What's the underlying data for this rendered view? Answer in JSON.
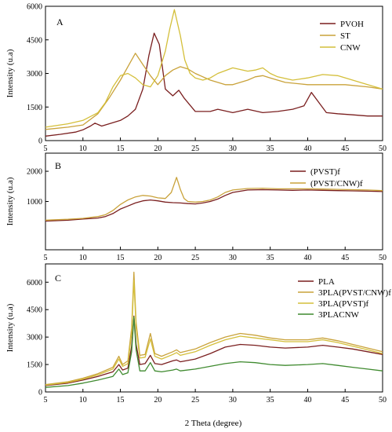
{
  "xlabel": "2 Theta (degree)",
  "colors": {
    "PVOH": "#7a1f1f",
    "ST": "#c9a23a",
    "CNW": "#d4bf3a",
    "PVST": "#7a1f1f",
    "PVSTCNW": "#c9a23a",
    "PLA": "#7a1f1f",
    "PLA_PVSTCNW": "#c9a23a",
    "PLA_PVST": "#d4bf3a",
    "PLACNW": "#3f8a2f"
  },
  "chart_data": [
    {
      "type": "line",
      "panel_label": "A",
      "ylabel": "Intensity (u.a)",
      "xlim": [
        5,
        50
      ],
      "ylim": [
        0,
        6000
      ],
      "xticks": [
        "5",
        "10",
        "15",
        "20",
        "25",
        "30",
        "35",
        "40",
        "45",
        "50"
      ],
      "yticks": [
        "0",
        "1500",
        "3000",
        "4500",
        "6000"
      ],
      "ytick_values": [
        0,
        1500,
        3000,
        4500,
        6000
      ],
      "legend_position": "top-right",
      "series": [
        {
          "name": "PVOH",
          "color_key": "PVOH",
          "x": [
            5,
            7,
            9,
            10,
            11,
            11.6,
            12.5,
            13.5,
            15,
            16,
            17,
            18,
            18.8,
            19.5,
            20.2,
            21,
            22,
            22.8,
            23.5,
            25,
            27,
            28,
            30,
            32,
            34,
            36,
            38,
            39.5,
            40.5,
            41.5,
            42.5,
            44,
            46,
            48,
            50
          ],
          "y": [
            200,
            280,
            380,
            480,
            650,
            780,
            650,
            750,
            900,
            1100,
            1400,
            2300,
            3800,
            4800,
            4300,
            2300,
            2000,
            2250,
            1900,
            1300,
            1300,
            1400,
            1250,
            1400,
            1250,
            1300,
            1400,
            1550,
            2150,
            1700,
            1250,
            1200,
            1150,
            1100,
            1100
          ]
        },
        {
          "name": "ST",
          "color_key": "ST",
          "x": [
            5,
            8,
            10,
            12,
            13.5,
            15,
            16,
            17,
            18,
            19,
            20,
            21,
            22,
            23,
            24,
            25,
            27,
            29,
            30,
            32,
            33,
            34,
            35,
            37,
            40,
            42,
            45,
            48,
            50
          ],
          "y": [
            500,
            600,
            700,
            1200,
            1900,
            2700,
            3300,
            3900,
            3400,
            2900,
            2500,
            2900,
            3150,
            3300,
            3200,
            3000,
            2700,
            2500,
            2500,
            2700,
            2850,
            2900,
            2800,
            2600,
            2500,
            2500,
            2500,
            2400,
            2300
          ]
        },
        {
          "name": "CNW",
          "color_key": "CNW",
          "x": [
            5,
            8,
            10,
            12,
            13,
            14,
            15,
            16,
            17,
            18,
            19,
            20,
            21,
            21.6,
            22.2,
            23,
            23.6,
            24.3,
            25,
            26,
            27,
            28,
            30,
            32,
            33,
            34,
            35,
            36,
            38,
            40,
            42,
            44,
            46,
            48,
            50
          ],
          "y": [
            600,
            750,
            900,
            1250,
            1700,
            2400,
            2900,
            3000,
            2800,
            2500,
            2400,
            2900,
            4000,
            5000,
            5850,
            4700,
            3600,
            3000,
            2800,
            2700,
            2800,
            3000,
            3250,
            3100,
            3150,
            3250,
            3000,
            2850,
            2700,
            2800,
            2950,
            2900,
            2700,
            2500,
            2300
          ]
        }
      ]
    },
    {
      "type": "line",
      "panel_label": "B",
      "ylabel": "Intensity (u.a)",
      "xlim": [
        5,
        50
      ],
      "ylim": [
        -600,
        2600
      ],
      "xticks": [
        "5",
        "10",
        "15",
        "20",
        "25",
        "30",
        "35",
        "40",
        "45",
        "50"
      ],
      "yticks": [
        "1000",
        "2000"
      ],
      "ytick_values": [
        1000,
        2000
      ],
      "legend_position": "top-right",
      "series": [
        {
          "name": "(PVST)f",
          "color_key": "PVST",
          "x": [
            5,
            8,
            10,
            12,
            13,
            14,
            15,
            16,
            17,
            18,
            19,
            20,
            21,
            22,
            23,
            24,
            25,
            26,
            27,
            28,
            29,
            30,
            32,
            34,
            36,
            38,
            40,
            42,
            44,
            46,
            48,
            50
          ],
          "y": [
            350,
            380,
            420,
            450,
            500,
            600,
            750,
            850,
            950,
            1020,
            1050,
            1020,
            980,
            960,
            950,
            930,
            920,
            950,
            1000,
            1080,
            1200,
            1300,
            1380,
            1390,
            1380,
            1370,
            1380,
            1370,
            1360,
            1350,
            1340,
            1330
          ]
        },
        {
          "name": "(PVST/CNW)f",
          "color_key": "PVSTCNW",
          "x": [
            5,
            8,
            10,
            12,
            13,
            14,
            15,
            16,
            17,
            18,
            19,
            20,
            21,
            21.8,
            22.5,
            23,
            23.5,
            24,
            25,
            26,
            27,
            28,
            29,
            30,
            32,
            34,
            36,
            38,
            40,
            42,
            44,
            46,
            48,
            50
          ],
          "y": [
            380,
            410,
            440,
            500,
            560,
            700,
            900,
            1050,
            1150,
            1200,
            1180,
            1120,
            1100,
            1300,
            1800,
            1400,
            1100,
            1000,
            980,
            1000,
            1050,
            1150,
            1300,
            1380,
            1430,
            1440,
            1420,
            1420,
            1420,
            1410,
            1400,
            1390,
            1380,
            1360
          ]
        }
      ]
    },
    {
      "type": "line",
      "panel_label": "C",
      "ylabel": "Intensity (u.a)",
      "xlim": [
        5,
        50
      ],
      "ylim": [
        0,
        7000
      ],
      "xticks": [
        "5",
        "10",
        "15",
        "20",
        "25",
        "30",
        "35",
        "40",
        "45",
        "50"
      ],
      "yticks": [
        "0",
        "1500",
        "3000",
        "4500",
        "6000"
      ],
      "ytick_values": [
        0,
        1500,
        3000,
        4500,
        6000
      ],
      "legend_position": "top-right",
      "series": [
        {
          "name": "PLA",
          "color_key": "PLA",
          "x": [
            5,
            8,
            10,
            12,
            14,
            14.8,
            15.3,
            16,
            16.5,
            16.8,
            17.1,
            17.6,
            18.3,
            19,
            19.6,
            20.5,
            22,
            22.5,
            23,
            25,
            27,
            29,
            31,
            33,
            35,
            37,
            40,
            42,
            44,
            46,
            48,
            50
          ],
          "y": [
            350,
            480,
            650,
            850,
            1100,
            1500,
            1200,
            1300,
            2500,
            4150,
            2600,
            1500,
            1550,
            2000,
            1550,
            1500,
            1700,
            1750,
            1650,
            1800,
            2100,
            2450,
            2600,
            2550,
            2450,
            2400,
            2450,
            2550,
            2450,
            2350,
            2200,
            2050
          ]
        },
        {
          "name": "3PLA(PVST/CNW)f",
          "color_key": "PLA_PVSTCNW",
          "x": [
            5,
            8,
            10,
            12,
            14,
            14.8,
            15.3,
            16,
            16.5,
            16.8,
            17.1,
            17.6,
            18.3,
            19,
            19.6,
            20.5,
            22,
            22.5,
            23,
            25,
            27,
            29,
            31,
            33,
            35,
            37,
            40,
            42,
            44,
            46,
            48,
            50
          ],
          "y": [
            400,
            560,
            750,
            1000,
            1350,
            1950,
            1500,
            1700,
            3500,
            6550,
            3800,
            2000,
            2050,
            3200,
            2100,
            1950,
            2200,
            2300,
            2150,
            2350,
            2700,
            3000,
            3200,
            3100,
            2950,
            2850,
            2850,
            2950,
            2800,
            2600,
            2400,
            2200
          ]
        },
        {
          "name": "3PLA(PVST)f",
          "color_key": "PLA_PVST",
          "x": [
            5,
            8,
            10,
            12,
            14,
            14.8,
            15.3,
            16,
            16.5,
            16.8,
            17.1,
            17.6,
            18.3,
            19,
            19.6,
            20.5,
            22,
            22.5,
            23,
            25,
            27,
            29,
            31,
            33,
            35,
            37,
            40,
            42,
            44,
            46,
            48,
            50
          ],
          "y": [
            380,
            520,
            700,
            930,
            1250,
            1800,
            1400,
            1550,
            3200,
            6100,
            3500,
            1850,
            1900,
            2900,
            1950,
            1800,
            2050,
            2150,
            2000,
            2200,
            2550,
            2850,
            3050,
            2950,
            2850,
            2750,
            2750,
            2850,
            2700,
            2500,
            2300,
            2100
          ]
        },
        {
          "name": "3PLACNW",
          "color_key": "PLACNW",
          "x": [
            5,
            8,
            10,
            12,
            14,
            14.8,
            15.3,
            16,
            16.5,
            16.8,
            17.1,
            17.6,
            18.3,
            19,
            19.6,
            20.5,
            22,
            22.5,
            23,
            25,
            27,
            29,
            31,
            33,
            35,
            37,
            40,
            42,
            44,
            46,
            48,
            50
          ],
          "y": [
            250,
            350,
            480,
            650,
            850,
            1250,
            950,
            1050,
            2200,
            4100,
            2300,
            1150,
            1150,
            1600,
            1150,
            1100,
            1200,
            1250,
            1150,
            1250,
            1400,
            1550,
            1650,
            1600,
            1500,
            1450,
            1500,
            1550,
            1450,
            1350,
            1250,
            1150
          ]
        }
      ]
    }
  ]
}
